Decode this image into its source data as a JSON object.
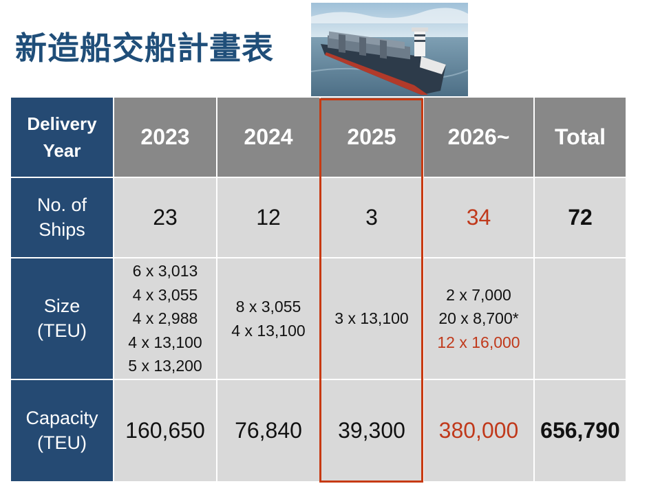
{
  "title": "新造船交船計畫表",
  "photo": {
    "subject": "container-ship"
  },
  "table": {
    "corner_lines": [
      "Delivery",
      "Year"
    ],
    "columns": [
      "2023",
      "2024",
      "2025",
      "2026~",
      "Total"
    ],
    "rows": [
      {
        "label_lines": [
          "No. of",
          "Ships"
        ],
        "cells": [
          "23",
          "12",
          "3",
          "34",
          "72"
        ]
      },
      {
        "label_lines": [
          "Size",
          "(TEU)"
        ],
        "cells": [
          [
            "6 x 3,013",
            "4 x 3,055",
            "4 x 2,988",
            "4 x 13,100",
            "5 x 13,200"
          ],
          [
            "8 x  3,055",
            "4 x 13,100"
          ],
          [
            "3 x 13,100"
          ],
          [
            "2  x  7,000",
            "20 x  8,700*",
            "12 x 16,000"
          ],
          []
        ]
      },
      {
        "label_lines": [
          "Capacity",
          "(TEU)"
        ],
        "cells": [
          "160,650",
          "76,840",
          "39,300",
          "380,000",
          "656,790"
        ]
      }
    ],
    "highlighted_column": "2025"
  },
  "colors": {
    "title": "#1f4e79",
    "row_header": "#254a73",
    "column_header": "#888888",
    "body": "#d9d9d9",
    "emphasis_red": "#c0391b",
    "highlight_border": "#c73a12"
  }
}
